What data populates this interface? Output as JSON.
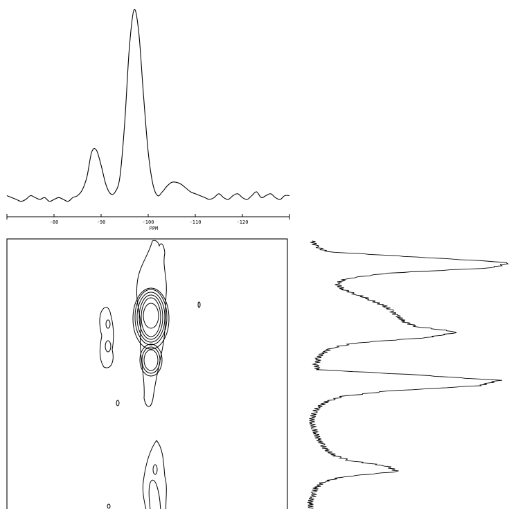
{
  "chart_data": [
    {
      "type": "line",
      "panel": "top-projection",
      "xlabel": "PPM",
      "x_ticks": [
        -80,
        -90,
        -100,
        -110,
        -120
      ],
      "x_tick_labels": [
        "-80",
        "-90",
        "-100",
        "-110",
        "-120"
      ],
      "xlim": [
        -70,
        -130
      ],
      "ylim": [
        0,
        100
      ],
      "series": [
        {
          "x": [
            -70,
            -71,
            -72,
            -73,
            -74,
            -75,
            -76,
            -77,
            -78,
            -79,
            -80,
            -81,
            -82,
            -83,
            -84,
            -85,
            -86,
            -87,
            -88,
            -89,
            -90,
            -91,
            -92,
            -93,
            -94,
            -95,
            -96,
            -97,
            -98,
            -99,
            -100,
            -101,
            -102,
            -103,
            -104,
            -105,
            -106,
            -107,
            -108,
            -109,
            -110,
            -111,
            -112,
            -113,
            -114,
            -115,
            -116,
            -117,
            -118,
            -119,
            -120,
            -121,
            -122,
            -123,
            -124,
            -125,
            -126,
            -127,
            -128,
            -129,
            -130
          ],
          "y": [
            2,
            1,
            0,
            -1,
            0,
            2,
            1,
            0,
            1,
            -1,
            0,
            1,
            0,
            -1,
            1,
            2,
            5,
            12,
            25,
            26,
            18,
            8,
            3,
            4,
            12,
            40,
            80,
            100,
            88,
            55,
            25,
            8,
            2,
            4,
            7,
            9,
            9,
            8,
            6,
            4,
            3,
            2,
            1,
            0,
            1,
            3,
            1,
            0,
            2,
            3,
            1,
            0,
            2,
            4,
            1,
            2,
            3,
            1,
            0,
            2,
            2
          ]
        }
      ]
    },
    {
      "type": "heatmap",
      "panel": "contour-map",
      "description_contours": "nested contour levels",
      "peaks": [
        {
          "x_ppm": -100,
          "level": 6
        },
        {
          "x_ppm": -100,
          "level": 5
        },
        {
          "x_ppm": -89,
          "level": 2
        }
      ]
    },
    {
      "type": "line",
      "panel": "right-projection",
      "ylim": [
        0,
        100
      ],
      "series": [
        {
          "y": [
            0,
            2,
            4,
            6,
            8,
            10,
            12,
            14,
            16,
            18,
            20,
            22,
            24,
            26,
            28,
            30,
            32,
            34,
            36,
            38,
            40,
            42,
            44,
            46,
            48,
            50,
            52,
            54,
            56,
            58,
            60,
            62,
            64,
            66,
            68,
            70,
            72,
            74,
            76,
            78,
            80,
            82,
            84,
            86,
            88,
            90,
            92,
            94,
            96,
            98,
            100
          ],
          "x": [
            3,
            5,
            10,
            55,
            100,
            92,
            40,
            20,
            15,
            18,
            25,
            32,
            38,
            42,
            45,
            48,
            55,
            75,
            60,
            25,
            12,
            8,
            6,
            5,
            6,
            55,
            95,
            85,
            40,
            18,
            10,
            6,
            4,
            3,
            3,
            4,
            5,
            6,
            8,
            10,
            14,
            22,
            40,
            45,
            18,
            8,
            5,
            4,
            3,
            2,
            2
          ]
        }
      ]
    }
  ]
}
